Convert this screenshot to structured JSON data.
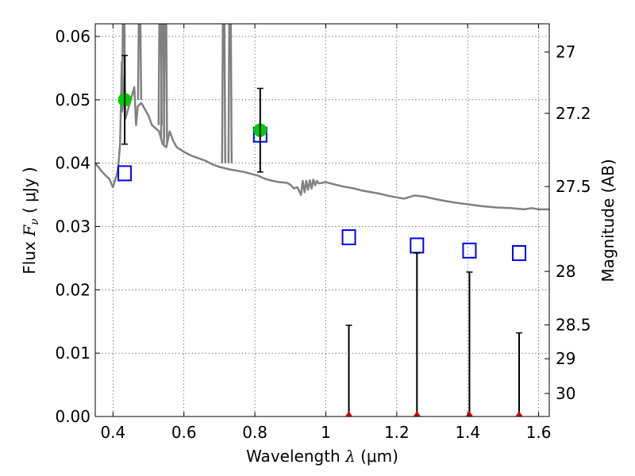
{
  "chart_data": {
    "type": "scatter",
    "xlabel": {
      "prefix": "Wavelength  ",
      "symbol": "λ",
      "unit": " (μm)"
    },
    "ylabel": {
      "prefix": "Flux  ",
      "symbol": "F",
      "subscript": "ν",
      "unit": "  ( μJy )"
    },
    "y2label": "Magnitude (AB)",
    "xlim": [
      0.35,
      1.63
    ],
    "ylim": [
      0.0,
      0.062
    ],
    "grid": true,
    "x_ticks": [
      {
        "value": 0.4,
        "label": "0.4"
      },
      {
        "value": 0.6,
        "label": "0.6"
      },
      {
        "value": 0.8,
        "label": "0.8"
      },
      {
        "value": 1.0,
        "label": "1"
      },
      {
        "value": 1.2,
        "label": "1.2"
      },
      {
        "value": 1.4,
        "label": "1.4"
      },
      {
        "value": 1.6,
        "label": "1.6"
      }
    ],
    "y_ticks": [
      {
        "value": 0.0,
        "label": "0.00"
      },
      {
        "value": 0.01,
        "label": "0.01"
      },
      {
        "value": 0.02,
        "label": "0.02"
      },
      {
        "value": 0.03,
        "label": "0.03"
      },
      {
        "value": 0.04,
        "label": "0.04"
      },
      {
        "value": 0.05,
        "label": "0.05"
      },
      {
        "value": 0.06,
        "label": "0.06"
      }
    ],
    "y2_ticks": [
      {
        "value": 27.0,
        "label": "27"
      },
      {
        "value": 27.2,
        "label": "27.2"
      },
      {
        "value": 27.5,
        "label": "27.5"
      },
      {
        "value": 28.0,
        "label": "28"
      },
      {
        "value": 28.5,
        "label": "28.5"
      },
      {
        "value": 29.0,
        "label": "29"
      },
      {
        "value": 30.0,
        "label": "30"
      }
    ],
    "series": [
      {
        "kind": "line",
        "color": "#808080",
        "points": [
          [
            0.35,
            0.04
          ],
          [
            0.36,
            0.0393
          ],
          [
            0.37,
            0.0386
          ],
          [
            0.38,
            0.038
          ],
          [
            0.39,
            0.0375
          ],
          [
            0.395,
            0.0368
          ],
          [
            0.4,
            0.0362
          ],
          [
            0.405,
            0.0372
          ],
          [
            0.41,
            0.038
          ],
          [
            0.415,
            0.0395
          ],
          [
            0.42,
            0.043
          ],
          [
            0.425,
            0.056
          ],
          [
            0.43,
            0.05
          ],
          [
            0.435,
            0.047
          ],
          [
            0.44,
            0.048
          ],
          [
            0.45,
            0.05
          ],
          [
            0.46,
            0.052
          ],
          [
            0.465,
            0.046
          ],
          [
            0.47,
            0.049
          ],
          [
            0.48,
            0.0495
          ],
          [
            0.49,
            0.0485
          ],
          [
            0.5,
            0.0475
          ],
          [
            0.51,
            0.046
          ],
          [
            0.52,
            0.0455
          ],
          [
            0.53,
            0.045
          ],
          [
            0.535,
            0.044
          ],
          [
            0.54,
            0.043
          ],
          [
            0.55,
            0.0425
          ],
          [
            0.56,
            0.045
          ],
          [
            0.57,
            0.0435
          ],
          [
            0.58,
            0.0425
          ],
          [
            0.6,
            0.0418
          ],
          [
            0.62,
            0.0412
          ],
          [
            0.64,
            0.0408
          ],
          [
            0.66,
            0.0404
          ],
          [
            0.68,
            0.0398
          ],
          [
            0.7,
            0.0394
          ],
          [
            0.715,
            0.0392
          ],
          [
            0.73,
            0.039
          ],
          [
            0.75,
            0.0388
          ],
          [
            0.77,
            0.0386
          ],
          [
            0.79,
            0.0383
          ],
          [
            0.81,
            0.038
          ],
          [
            0.83,
            0.0375
          ],
          [
            0.85,
            0.0372
          ],
          [
            0.87,
            0.037
          ],
          [
            0.89,
            0.0369
          ],
          [
            0.9,
            0.0366
          ],
          [
            0.91,
            0.036
          ],
          [
            0.92,
            0.0362
          ],
          [
            0.93,
            0.035
          ],
          [
            0.935,
            0.0372
          ],
          [
            0.94,
            0.0354
          ],
          [
            0.945,
            0.0372
          ],
          [
            0.95,
            0.0358
          ],
          [
            0.955,
            0.0373
          ],
          [
            0.96,
            0.036
          ],
          [
            0.965,
            0.0374
          ],
          [
            0.97,
            0.0365
          ],
          [
            0.975,
            0.0372
          ],
          [
            0.98,
            0.0368
          ],
          [
            1.0,
            0.037
          ],
          [
            1.02,
            0.0367
          ],
          [
            1.05,
            0.0363
          ],
          [
            1.08,
            0.036
          ],
          [
            1.1,
            0.0357
          ],
          [
            1.12,
            0.0355
          ],
          [
            1.15,
            0.0352
          ],
          [
            1.18,
            0.0348
          ],
          [
            1.2,
            0.0346
          ],
          [
            1.22,
            0.0344
          ],
          [
            1.25,
            0.0349
          ],
          [
            1.28,
            0.0347
          ],
          [
            1.32,
            0.0342
          ],
          [
            1.36,
            0.0338
          ],
          [
            1.4,
            0.0335
          ],
          [
            1.44,
            0.0332
          ],
          [
            1.48,
            0.033
          ],
          [
            1.52,
            0.0329
          ],
          [
            1.56,
            0.0327
          ],
          [
            1.58,
            0.0329
          ],
          [
            1.6,
            0.0327
          ],
          [
            1.63,
            0.0327
          ]
        ],
        "spikes": [
          {
            "x": 0.43,
            "ymin": 0.048,
            "ymax": 0.062
          },
          {
            "x": 0.475,
            "ymin": 0.05,
            "ymax": 0.062
          },
          {
            "x": 0.533,
            "ymin": 0.046,
            "ymax": 0.062
          },
          {
            "x": 0.54,
            "ymin": 0.044,
            "ymax": 0.062
          },
          {
            "x": 0.548,
            "ymin": 0.043,
            "ymax": 0.062
          },
          {
            "x": 0.712,
            "ymin": 0.04,
            "ymax": 0.062
          },
          {
            "x": 0.73,
            "ymin": 0.04,
            "ymax": 0.062
          }
        ]
      },
      {
        "kind": "squares",
        "color": "#0000ff",
        "points": [
          [
            0.433,
            0.0384
          ],
          [
            0.815,
            0.0445
          ],
          [
            1.065,
            0.0283
          ],
          [
            1.257,
            0.027
          ],
          [
            1.405,
            0.0262
          ],
          [
            1.545,
            0.0258
          ]
        ]
      },
      {
        "kind": "filled-circles",
        "color": "#00cc00",
        "points": [
          [
            0.433,
            0.05
          ],
          [
            0.815,
            0.0452
          ]
        ]
      },
      {
        "kind": "errorbars",
        "color": "#000000",
        "bars": [
          {
            "x": 0.433,
            "ylow": 0.043,
            "yhigh": 0.057
          },
          {
            "x": 0.815,
            "ylow": 0.0386,
            "yhigh": 0.0518
          },
          {
            "x": 1.065,
            "ylow": 0.0,
            "yhigh": 0.0144
          },
          {
            "x": 1.257,
            "ylow": 0.0,
            "yhigh": 0.0258
          },
          {
            "x": 1.405,
            "ylow": 0.0,
            "yhigh": 0.0228
          },
          {
            "x": 1.545,
            "ylow": 0.0,
            "yhigh": 0.0132
          }
        ]
      },
      {
        "kind": "red-markers",
        "color": "#cc0000",
        "points": [
          [
            1.065,
            0.0
          ],
          [
            1.257,
            0.0
          ],
          [
            1.405,
            0.0
          ],
          [
            1.545,
            0.0
          ]
        ]
      }
    ]
  }
}
